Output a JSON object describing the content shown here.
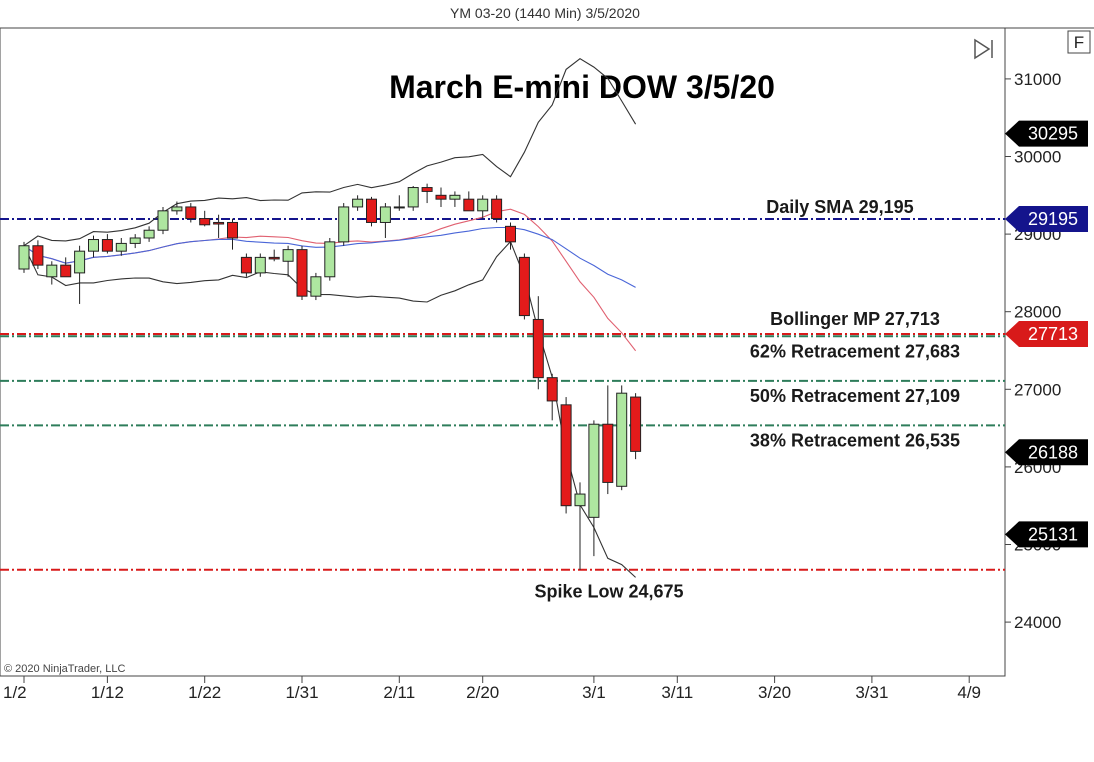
{
  "header": {
    "instrument_label": "YM 03-20 (1440 Min)  3/5/2020"
  },
  "toolbar": {
    "f_label": "F",
    "scroll_icon": "skip-to-end-icon"
  },
  "copyright": "© 2020 NinjaTrader, LLC",
  "colors": {
    "up_fill": "#aee6a0",
    "down_fill": "#e31b1b",
    "wick": "#222222",
    "sma_line": "#14148c",
    "red_line": "#d81a1a",
    "green_line": "#2e7d5b",
    "bb_band": "#333333",
    "bb_mid": "#e06070",
    "sma_curve": "#4a66d8"
  },
  "chart_data": {
    "type": "candlestick",
    "title": "March E-mini DOW 3/5/20",
    "x_tick_labels": [
      "1/2",
      "1/12",
      "1/22",
      "1/31",
      "2/11",
      "2/20",
      "3/1",
      "3/11",
      "3/20",
      "3/31",
      "4/9"
    ],
    "y_tick_labels": [
      "31000",
      "30000",
      "29000",
      "28000",
      "27000",
      "26000",
      "25000",
      "24000"
    ],
    "ylim": [
      23000,
      31500
    ],
    "candles": [
      {
        "date": "2020-01-02",
        "open": 28550,
        "high": 28900,
        "low": 28500,
        "close": 28850
      },
      {
        "date": "2020-01-03",
        "open": 28850,
        "high": 28920,
        "low": 28550,
        "close": 28600
      },
      {
        "date": "2020-01-06",
        "open": 28450,
        "high": 28650,
        "low": 28350,
        "close": 28600
      },
      {
        "date": "2020-01-07",
        "open": 28600,
        "high": 28700,
        "low": 28450,
        "close": 28450
      },
      {
        "date": "2020-01-08",
        "open": 28500,
        "high": 28850,
        "low": 28100,
        "close": 28780
      },
      {
        "date": "2020-01-09",
        "open": 28780,
        "high": 28980,
        "low": 28700,
        "close": 28930
      },
      {
        "date": "2020-01-10",
        "open": 28930,
        "high": 29000,
        "low": 28750,
        "close": 28780
      },
      {
        "date": "2020-01-13",
        "open": 28780,
        "high": 28950,
        "low": 28720,
        "close": 28880
      },
      {
        "date": "2020-01-14",
        "open": 28880,
        "high": 29000,
        "low": 28820,
        "close": 28950
      },
      {
        "date": "2020-01-15",
        "open": 28950,
        "high": 29100,
        "low": 28900,
        "close": 29050
      },
      {
        "date": "2020-01-16",
        "open": 29050,
        "high": 29350,
        "low": 29000,
        "close": 29300
      },
      {
        "date": "2020-01-17",
        "open": 29300,
        "high": 29420,
        "low": 29250,
        "close": 29350
      },
      {
        "date": "2020-01-21",
        "open": 29350,
        "high": 29400,
        "low": 29150,
        "close": 29200
      },
      {
        "date": "2020-01-22",
        "open": 29200,
        "high": 29300,
        "low": 29100,
        "close": 29120
      },
      {
        "date": "2020-01-23",
        "open": 29150,
        "high": 29250,
        "low": 28950,
        "close": 29130
      },
      {
        "date": "2020-01-24",
        "open": 29150,
        "high": 29200,
        "low": 28800,
        "close": 28950
      },
      {
        "date": "2020-01-27",
        "open": 28700,
        "high": 28750,
        "low": 28450,
        "close": 28500
      },
      {
        "date": "2020-01-28",
        "open": 28500,
        "high": 28750,
        "low": 28450,
        "close": 28700
      },
      {
        "date": "2020-01-29",
        "open": 28700,
        "high": 28800,
        "low": 28650,
        "close": 28680
      },
      {
        "date": "2020-01-30",
        "open": 28650,
        "high": 28850,
        "low": 28450,
        "close": 28800
      },
      {
        "date": "2020-01-31",
        "open": 28800,
        "high": 28850,
        "low": 28150,
        "close": 28200
      },
      {
        "date": "2020-02-03",
        "open": 28200,
        "high": 28500,
        "low": 28150,
        "close": 28450
      },
      {
        "date": "2020-02-04",
        "open": 28450,
        "high": 28950,
        "low": 28400,
        "close": 28900
      },
      {
        "date": "2020-02-05",
        "open": 28900,
        "high": 29400,
        "low": 28850,
        "close": 29350
      },
      {
        "date": "2020-02-06",
        "open": 29350,
        "high": 29500,
        "low": 29300,
        "close": 29450
      },
      {
        "date": "2020-02-07",
        "open": 29450,
        "high": 29480,
        "low": 29100,
        "close": 29150
      },
      {
        "date": "2020-02-10",
        "open": 29150,
        "high": 29400,
        "low": 28950,
        "close": 29350
      },
      {
        "date": "2020-02-11",
        "open": 29350,
        "high": 29500,
        "low": 29300,
        "close": 29350
      },
      {
        "date": "2020-02-12",
        "open": 29350,
        "high": 29620,
        "low": 29300,
        "close": 29600
      },
      {
        "date": "2020-02-13",
        "open": 29600,
        "high": 29650,
        "low": 29400,
        "close": 29550
      },
      {
        "date": "2020-02-14",
        "open": 29500,
        "high": 29600,
        "low": 29350,
        "close": 29450
      },
      {
        "date": "2020-02-18",
        "open": 29450,
        "high": 29550,
        "low": 29350,
        "close": 29500
      },
      {
        "date": "2020-02-19",
        "open": 29450,
        "high": 29550,
        "low": 29300,
        "close": 29300
      },
      {
        "date": "2020-02-20",
        "open": 29300,
        "high": 29500,
        "low": 29200,
        "close": 29450
      },
      {
        "date": "2020-02-21",
        "open": 29450,
        "high": 29500,
        "low": 29150,
        "close": 29200
      },
      {
        "date": "2020-02-24",
        "open": 29100,
        "high": 29150,
        "low": 28800,
        "close": 28900
      },
      {
        "date": "2020-02-25",
        "open": 28700,
        "high": 28750,
        "low": 27900,
        "close": 27950
      },
      {
        "date": "2020-02-26",
        "open": 27900,
        "high": 28200,
        "low": 27000,
        "close": 27150
      },
      {
        "date": "2020-02-27",
        "open": 27150,
        "high": 27200,
        "low": 26600,
        "close": 26850
      },
      {
        "date": "2020-02-28",
        "open": 26800,
        "high": 26900,
        "low": 25400,
        "close": 25500
      },
      {
        "date": "2020-03-02",
        "open": 25500,
        "high": 25800,
        "low": 24675,
        "close": 25650
      },
      {
        "date": "2020-03-03",
        "open": 25350,
        "high": 26600,
        "low": 24850,
        "close": 26550
      },
      {
        "date": "2020-03-04",
        "open": 26550,
        "high": 27050,
        "low": 25650,
        "close": 25800
      },
      {
        "date": "2020-03-05",
        "open": 25750,
        "high": 27050,
        "low": 25700,
        "close": 26950
      },
      {
        "date": "2020-03-06",
        "open": 26900,
        "high": 26950,
        "low": 26100,
        "close": 26200
      }
    ],
    "horizontal_levels": [
      {
        "name": "Daily SMA 29,195",
        "value": 29195,
        "color": "#14148c",
        "badge": "29195"
      },
      {
        "name": "Bollinger MP 27,713",
        "value": 27713,
        "color": "#d81a1a",
        "badge": "27713"
      },
      {
        "name": "62% Retracement 27,683",
        "value": 27683,
        "color": "#2e7d5b"
      },
      {
        "name": "50% Retracement 27,109",
        "value": 27109,
        "color": "#2e7d5b"
      },
      {
        "name": "38% Retracement 26,535",
        "value": 26535,
        "color": "#2e7d5b"
      },
      {
        "name": "Spike Low 24,675",
        "value": 24675,
        "color": "#d81a1a"
      }
    ],
    "badges": [
      {
        "value": 30295,
        "label": "30295",
        "color": "#000000"
      },
      {
        "value": 26188,
        "label": "26188",
        "color": "#000000"
      },
      {
        "value": 25131,
        "label": "25131",
        "color": "#000000"
      }
    ]
  }
}
